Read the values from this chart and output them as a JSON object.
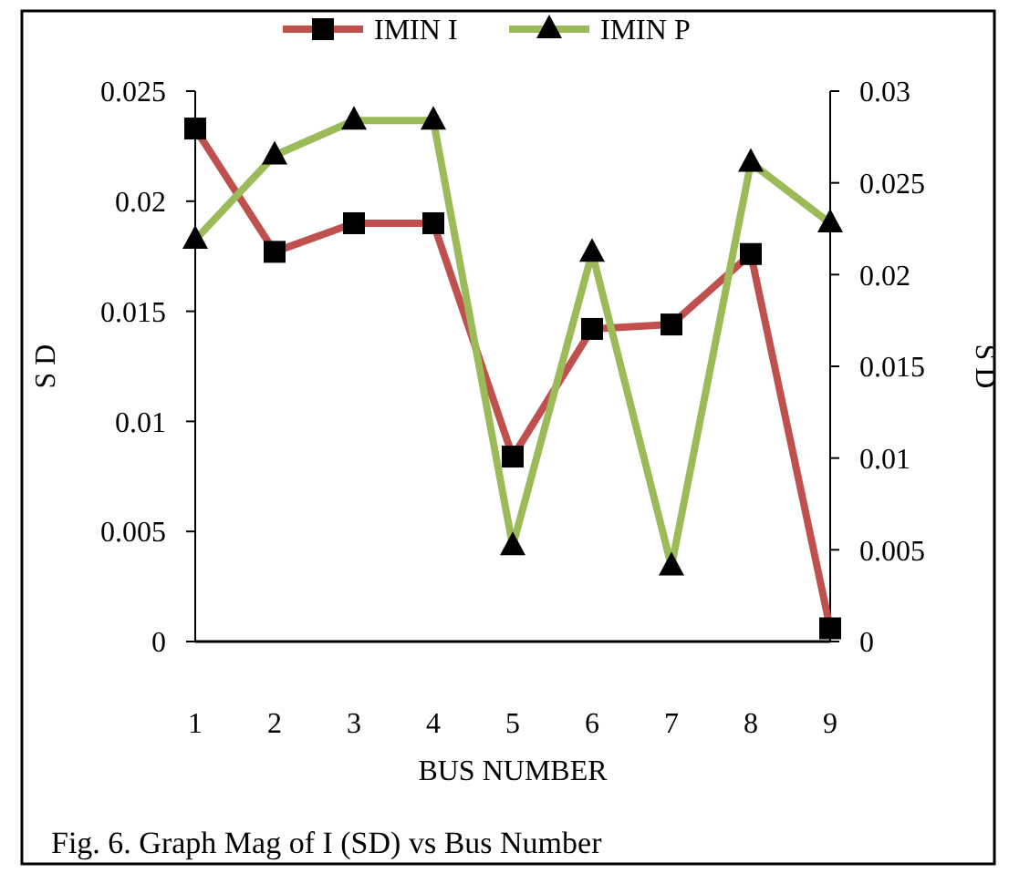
{
  "chart_data": {
    "type": "line",
    "xlabel": "BUS NUMBER",
    "ylabel": "S D",
    "y2label": "S D",
    "categories": [
      "1",
      "2",
      "3",
      "4",
      "5",
      "6",
      "7",
      "8",
      "9"
    ],
    "series": [
      {
        "name": "IMIN I",
        "color": "#c0504d",
        "marker": "square",
        "values": [
          0.0233,
          0.0177,
          0.019,
          0.019,
          0.0084,
          0.0142,
          0.0144,
          0.0176,
          0.0006
        ]
      },
      {
        "name": "IMIN P",
        "color": "#9bbb59",
        "marker": "triangle",
        "axis": "y2",
        "values": [
          0.0219,
          0.0265,
          0.0284,
          0.0284,
          0.0052,
          0.0212,
          0.0041,
          0.0261,
          0.0228
        ]
      }
    ],
    "ylim": [
      0,
      0.025
    ],
    "yticks": [
      0,
      0.005,
      0.01,
      0.015,
      0.02,
      0.025
    ],
    "y2lim": [
      0,
      0.03
    ],
    "y2ticks": [
      0,
      0.005,
      0.01,
      0.015,
      0.02,
      0.025,
      0.03
    ],
    "grid": false,
    "legend": "top",
    "annotations": [
      "Fig. 6. Graph Mag of I (SD) vs Bus Number"
    ]
  }
}
